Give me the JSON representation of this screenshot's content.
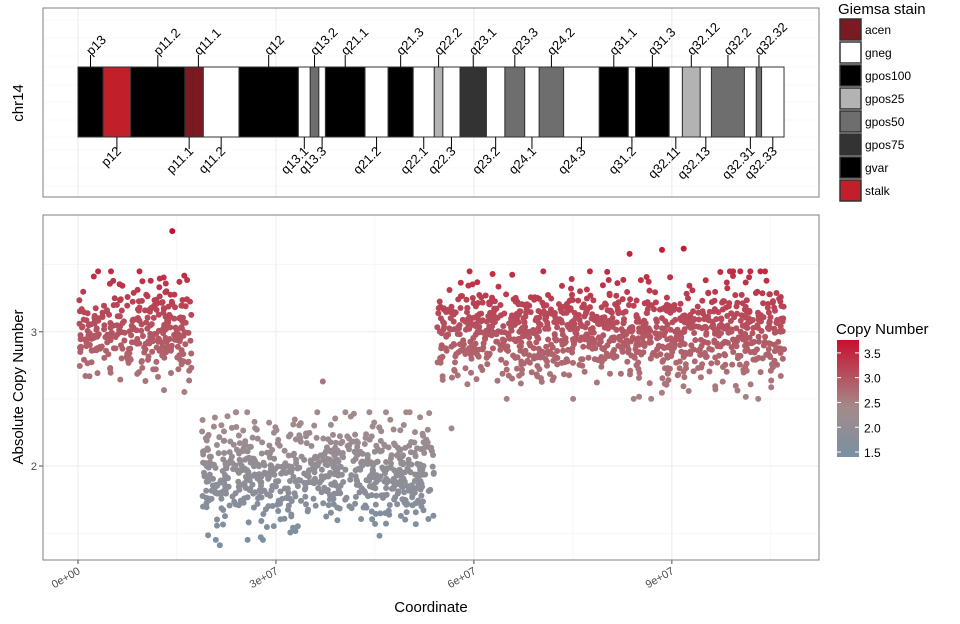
{
  "chart_data": [
    {
      "type": "ideogram",
      "ylabel": "chr14",
      "x_unit": "Mb",
      "bands": [
        {
          "name": "p13",
          "start": 0,
          "end": 3.8,
          "stain": "gvar"
        },
        {
          "name": "p12",
          "start": 3.8,
          "end": 8.0,
          "stain": "stalk"
        },
        {
          "name": "p11.2",
          "start": 8.0,
          "end": 16.2,
          "stain": "gvar"
        },
        {
          "name": "p11.1",
          "start": 16.2,
          "end": 17.5,
          "stain": "acen"
        },
        {
          "name": "q11.1",
          "start": 17.5,
          "end": 19.0,
          "stain": "acen"
        },
        {
          "name": "q11.2",
          "start": 19.0,
          "end": 24.4,
          "stain": "gneg"
        },
        {
          "name": "q12",
          "start": 24.4,
          "end": 33.4,
          "stain": "gpos100"
        },
        {
          "name": "q13.1",
          "start": 33.4,
          "end": 35.2,
          "stain": "gneg"
        },
        {
          "name": "q13.2",
          "start": 35.2,
          "end": 36.5,
          "stain": "gpos50"
        },
        {
          "name": "q13.3",
          "start": 36.5,
          "end": 37.5,
          "stain": "gneg"
        },
        {
          "name": "q21.1",
          "start": 37.5,
          "end": 43.5,
          "stain": "gpos100"
        },
        {
          "name": "q21.2",
          "start": 43.5,
          "end": 47.0,
          "stain": "gneg"
        },
        {
          "name": "q21.3",
          "start": 47.0,
          "end": 50.8,
          "stain": "gpos100"
        },
        {
          "name": "q22.1",
          "start": 50.8,
          "end": 54.0,
          "stain": "gneg"
        },
        {
          "name": "q22.2",
          "start": 54.0,
          "end": 55.3,
          "stain": "gpos25"
        },
        {
          "name": "q22.3",
          "start": 55.3,
          "end": 57.9,
          "stain": "gneg"
        },
        {
          "name": "q23.1",
          "start": 57.9,
          "end": 61.9,
          "stain": "gpos75"
        },
        {
          "name": "q23.2",
          "start": 61.9,
          "end": 64.7,
          "stain": "gneg"
        },
        {
          "name": "q23.3",
          "start": 64.7,
          "end": 67.7,
          "stain": "gpos50"
        },
        {
          "name": "q24.1",
          "start": 67.7,
          "end": 69.9,
          "stain": "gneg"
        },
        {
          "name": "q24.2",
          "start": 69.9,
          "end": 73.6,
          "stain": "gpos50"
        },
        {
          "name": "q24.3",
          "start": 73.6,
          "end": 79.0,
          "stain": "gneg"
        },
        {
          "name": "q31.1",
          "start": 79.0,
          "end": 83.4,
          "stain": "gpos100"
        },
        {
          "name": "q31.2",
          "start": 83.4,
          "end": 84.5,
          "stain": "gneg"
        },
        {
          "name": "q31.3",
          "start": 84.5,
          "end": 89.6,
          "stain": "gpos100"
        },
        {
          "name": "q32.11",
          "start": 89.6,
          "end": 91.6,
          "stain": "gneg"
        },
        {
          "name": "q32.12",
          "start": 91.6,
          "end": 94.3,
          "stain": "gpos25"
        },
        {
          "name": "q32.13",
          "start": 94.3,
          "end": 96.0,
          "stain": "gneg"
        },
        {
          "name": "q32.2",
          "start": 96.0,
          "end": 101.0,
          "stain": "gpos50"
        },
        {
          "name": "q32.31",
          "start": 101.0,
          "end": 102.8,
          "stain": "gneg"
        },
        {
          "name": "q32.32",
          "start": 102.8,
          "end": 103.6,
          "stain": "gpos50"
        },
        {
          "name": "q32.33",
          "start": 103.6,
          "end": 107.0,
          "stain": "gneg"
        }
      ],
      "legend": {
        "title": "Giemsa stain",
        "position": "right",
        "items": [
          {
            "label": "acen",
            "color": "#7b1a21"
          },
          {
            "label": "gneg",
            "color": "#ffffff"
          },
          {
            "label": "gpos100",
            "color": "#000000"
          },
          {
            "label": "gpos25",
            "color": "#b3b3b3"
          },
          {
            "label": "gpos50",
            "color": "#6e6e6e"
          },
          {
            "label": "gpos75",
            "color": "#333333"
          },
          {
            "label": "gvar",
            "color": "#000000"
          },
          {
            "label": "stalk",
            "color": "#c11f29"
          }
        ]
      }
    },
    {
      "type": "scatter",
      "xlabel": "Coordinate",
      "ylabel": "Absolute Copy Number",
      "xlim": [
        -5300000.0,
        112300000.0
      ],
      "ylim": [
        1.3,
        3.87
      ],
      "x_ticks": [
        {
          "value": 0,
          "label": "0e+00"
        },
        {
          "value": 30000000,
          "label": "3e+07"
        },
        {
          "value": 60000000,
          "label": "6e+07"
        },
        {
          "value": 90000000,
          "label": "9e+07"
        }
      ],
      "y_ticks": [
        {
          "value": 2,
          "label": "2"
        },
        {
          "value": 3,
          "label": "3"
        }
      ],
      "grid": true,
      "segments": [
        {
          "start": 200000,
          "end": 17200000,
          "mean": 3.0,
          "sd": 0.19,
          "count": 320
        },
        {
          "start": 18800000,
          "end": 54000000,
          "mean": 1.95,
          "sd": 0.19,
          "count": 720
        },
        {
          "start": 54400000,
          "end": 107000000,
          "mean": 3.0,
          "sd": 0.19,
          "count": 1100
        }
      ],
      "outliers": [
        {
          "x": 14300000,
          "y": 3.75
        },
        {
          "x": 83600000,
          "y": 3.58
        },
        {
          "x": 88500000,
          "y": 3.61
        },
        {
          "x": 91800000,
          "y": 3.62
        },
        {
          "x": 37100000,
          "y": 2.63
        },
        {
          "x": 21500000,
          "y": 1.41
        },
        {
          "x": 25700000,
          "y": 1.45
        },
        {
          "x": 45700000,
          "y": 1.48
        },
        {
          "x": 56600000,
          "y": 2.28
        }
      ],
      "color_legend": {
        "title": "Copy Number",
        "position": "right",
        "range": [
          1.4,
          3.76
        ],
        "ticks": [
          {
            "value": 1.5,
            "label": "1.5"
          },
          {
            "value": 2.0,
            "label": "2.0"
          },
          {
            "value": 2.5,
            "label": "2.5"
          },
          {
            "value": 3.0,
            "label": "3.0"
          },
          {
            "value": 3.5,
            "label": "3.5"
          }
        ],
        "stops": [
          {
            "value": 1.4,
            "color": "#7991a3"
          },
          {
            "value": 2.4,
            "color": "#a48a8a"
          },
          {
            "value": 3.76,
            "color": "#c8102e"
          }
        ]
      }
    }
  ]
}
